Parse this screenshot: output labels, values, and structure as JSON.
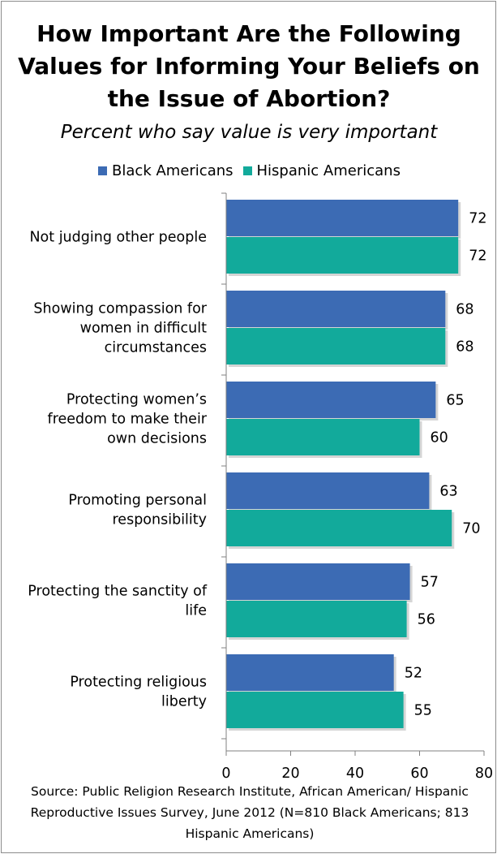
{
  "chart_data": {
    "type": "bar",
    "orientation": "horizontal",
    "title": "How Important Are the Following Values for Informing Your Beliefs on the Issue of Abortion?",
    "subtitle": "Percent who say value is very important",
    "categories": [
      "Not judging other people",
      "Showing compassion for women in difficult circumstances",
      "Protecting women’s freedom to make their own decisions",
      "Promoting personal responsibility",
      "Protecting the sanctity of life",
      "Protecting religious liberty"
    ],
    "category_lines": [
      [
        "Not judging other people"
      ],
      [
        "Showing compassion for",
        "women in difficult",
        "circumstances"
      ],
      [
        "Protecting women’s",
        "freedom to make their",
        "own decisions"
      ],
      [
        "Promoting personal",
        "responsibility"
      ],
      [
        "Protecting the sanctity of",
        "life"
      ],
      [
        "Protecting religious",
        "liberty"
      ]
    ],
    "series": [
      {
        "name": "Black Americans",
        "color": "#3c6bb4",
        "values": [
          72,
          68,
          65,
          63,
          57,
          52
        ]
      },
      {
        "name": "Hispanic Americans",
        "color": "#12aa9b",
        "values": [
          72,
          68,
          60,
          70,
          56,
          55
        ]
      }
    ],
    "xlim": [
      0,
      80
    ],
    "xticks": [
      0,
      20,
      40,
      60,
      80
    ],
    "grid": false,
    "legend_position": "top",
    "source": "Source: Public Religion Research Institute, African American/ Hispanic Reproductive Issues Survey, June 2012 (N=810 Black Americans; 813 Hispanic Americans)"
  }
}
